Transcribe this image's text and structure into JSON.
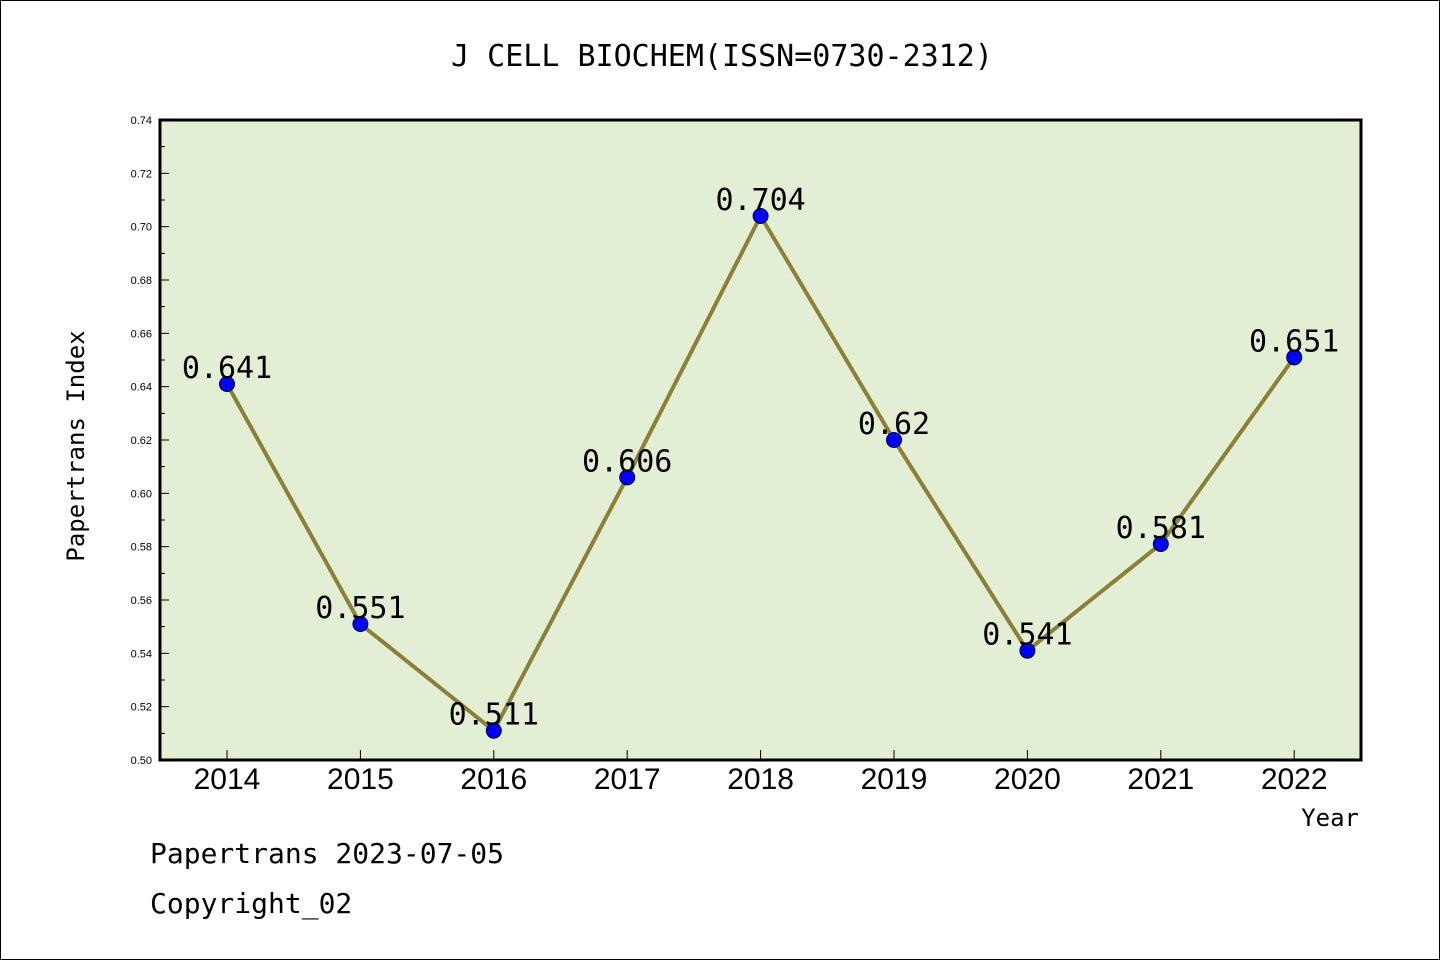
{
  "chart_data": {
    "type": "line",
    "title": "J CELL BIOCHEM(ISSN=0730-2312)",
    "xlabel": "Year",
    "ylabel": "Papertrans Index",
    "categories": [
      "2014",
      "2015",
      "2016",
      "2017",
      "2018",
      "2019",
      "2020",
      "2021",
      "2022"
    ],
    "values": [
      0.641,
      0.551,
      0.511,
      0.606,
      0.704,
      0.62,
      0.541,
      0.581,
      0.651
    ],
    "data_labels": [
      "0.641",
      "0.551",
      "0.511",
      "0.606",
      "0.704",
      "0.62",
      "0.541",
      "0.581",
      "0.651"
    ],
    "ylim": [
      0.5,
      0.74
    ],
    "yticks": [
      "0.50",
      "0.52",
      "0.54",
      "0.56",
      "0.58",
      "0.60",
      "0.62",
      "0.64",
      "0.66",
      "0.68",
      "0.70",
      "0.72",
      "0.74"
    ],
    "grid": false,
    "colors": {
      "plot_background": "#e2efd5",
      "line": "#8b8036",
      "marker": "#0000ff"
    }
  },
  "footer": {
    "source": "Papertrans 2023-07-05",
    "copyright": "Copyright_02"
  }
}
